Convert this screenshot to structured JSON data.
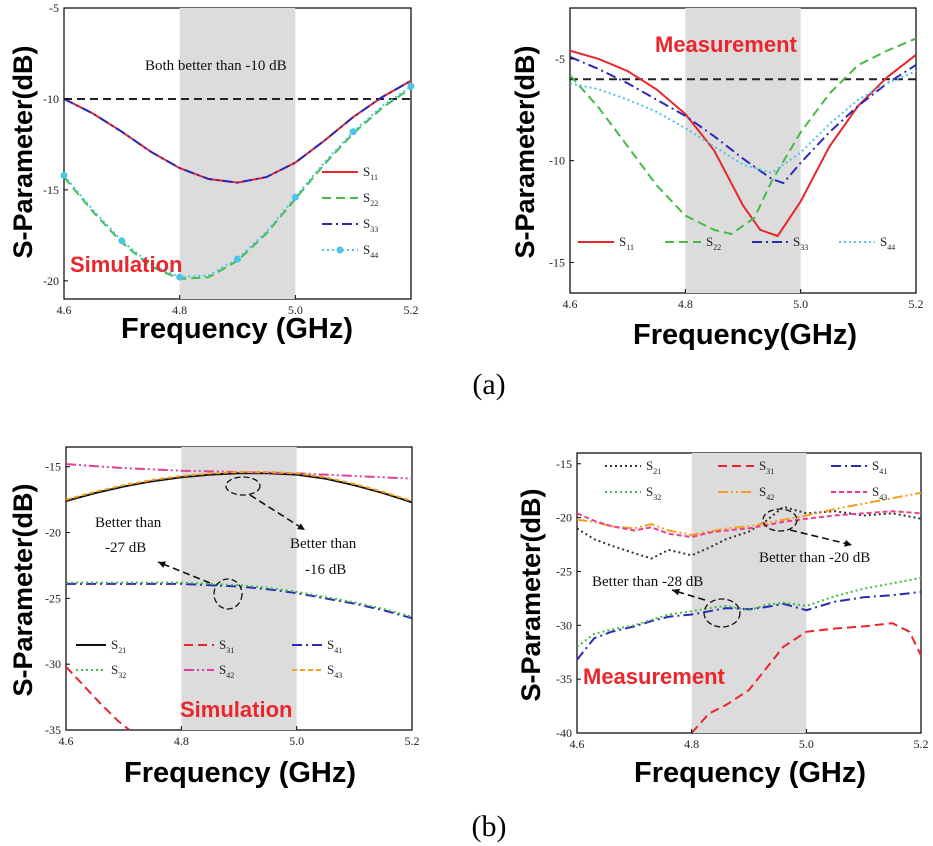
{
  "figure": {
    "panel_labels": [
      "(a)",
      "(b)"
    ],
    "xlabel": "Frequency (GHz)",
    "xlabel_alt": "Frequency(GHz)",
    "ylabel": "S-Parameter(dB)"
  },
  "chart_data": [
    {
      "id": "a-sim",
      "type": "line",
      "mode_label": "Simulation",
      "xlabel": "Frequency (GHz)",
      "ylabel": "S-Parameter(dB)",
      "xlim": [
        4.6,
        5.2
      ],
      "ylim": [
        -21,
        -5
      ],
      "xticks": [
        4.6,
        4.8,
        5.0,
        5.2
      ],
      "xtick_labels": [
        "4.6",
        "4.8",
        "5.0",
        "5.2"
      ],
      "yticks": [
        -5,
        -10,
        -15,
        -20
      ],
      "ytick_labels": [
        "-5",
        "-10",
        "-15",
        "-20"
      ],
      "band": [
        4.8,
        5.0
      ],
      "hline": -10,
      "annotations": [
        "Both better than -10 dB"
      ],
      "legend": [
        {
          "base": "S",
          "sub": "11"
        },
        {
          "base": "S",
          "sub": "22"
        },
        {
          "base": "S",
          "sub": "33"
        },
        {
          "base": "S",
          "sub": "44"
        }
      ],
      "series": [
        {
          "name": "S11",
          "color": "#e8262b",
          "style": "solid",
          "x": [
            4.6,
            4.65,
            4.7,
            4.75,
            4.8,
            4.85,
            4.9,
            4.95,
            5.0,
            5.05,
            5.1,
            5.15,
            5.2
          ],
          "y": [
            -10.0,
            -10.8,
            -11.8,
            -12.9,
            -13.8,
            -14.4,
            -14.6,
            -14.3,
            -13.5,
            -12.3,
            -11.0,
            -9.9,
            -9.0
          ]
        },
        {
          "name": "S22",
          "color": "#44bb44",
          "style": "dash",
          "x": [
            4.6,
            4.65,
            4.7,
            4.75,
            4.8,
            4.85,
            4.9,
            4.95,
            5.0,
            5.05,
            5.1,
            5.15,
            5.2
          ],
          "y": [
            -14.3,
            -16.2,
            -17.9,
            -19.2,
            -19.9,
            -19.8,
            -18.9,
            -17.4,
            -15.5,
            -13.6,
            -11.9,
            -10.5,
            -9.4
          ]
        },
        {
          "name": "S33",
          "color": "#2a2ab8",
          "style": "dashdot",
          "x": [
            4.6,
            4.65,
            4.7,
            4.75,
            4.8,
            4.85,
            4.9,
            4.95,
            5.0,
            5.05,
            5.1,
            5.15,
            5.2
          ],
          "y": [
            -10.0,
            -10.8,
            -11.8,
            -12.9,
            -13.8,
            -14.4,
            -14.6,
            -14.3,
            -13.5,
            -12.3,
            -11.0,
            -9.9,
            -9.0
          ]
        },
        {
          "name": "S44",
          "color": "#4cc4e8",
          "style": "dotmarker",
          "x": [
            4.6,
            4.65,
            4.7,
            4.75,
            4.8,
            4.85,
            4.9,
            4.95,
            5.0,
            5.05,
            5.1,
            5.15,
            5.2
          ],
          "y": [
            -14.2,
            -16.1,
            -17.8,
            -19.1,
            -19.8,
            -19.7,
            -18.8,
            -17.3,
            -15.4,
            -13.5,
            -11.8,
            -10.4,
            -9.3
          ]
        }
      ]
    },
    {
      "id": "a-meas",
      "type": "line",
      "mode_label": "Measurement",
      "xlabel": "Frequency(GHz)",
      "ylabel": "S-Parameter(dB)",
      "xlim": [
        4.6,
        5.2
      ],
      "ylim": [
        -16.5,
        -2.5
      ],
      "xticks": [
        4.6,
        4.8,
        5.0,
        5.2
      ],
      "xtick_labels": [
        "4.6",
        "4.8",
        "5.0",
        "5.2"
      ],
      "yticks": [
        -5,
        -10,
        -15
      ],
      "ytick_labels": [
        "-5",
        "-10",
        "-15"
      ],
      "band": [
        4.8,
        5.0
      ],
      "hline": -6,
      "annotations": [],
      "legend": [
        {
          "base": "S",
          "sub": "11"
        },
        {
          "base": "S",
          "sub": "22"
        },
        {
          "base": "S",
          "sub": "33"
        },
        {
          "base": "S",
          "sub": "44"
        }
      ],
      "series": [
        {
          "name": "S11",
          "color": "#e8262b",
          "style": "solid",
          "x": [
            4.6,
            4.65,
            4.7,
            4.75,
            4.8,
            4.85,
            4.9,
            4.93,
            4.96,
            5.0,
            5.05,
            5.1,
            5.15,
            5.2
          ],
          "y": [
            -4.6,
            -5.0,
            -5.6,
            -6.5,
            -7.7,
            -9.5,
            -12.2,
            -13.4,
            -13.7,
            -12.0,
            -9.3,
            -7.3,
            -5.9,
            -4.8
          ]
        },
        {
          "name": "S22",
          "color": "#44bb44",
          "style": "dash",
          "x": [
            4.6,
            4.65,
            4.7,
            4.75,
            4.8,
            4.85,
            4.88,
            4.92,
            4.95,
            5.0,
            5.05,
            5.1,
            5.15,
            5.2
          ],
          "y": [
            -5.8,
            -7.4,
            -9.3,
            -11.2,
            -12.7,
            -13.4,
            -13.6,
            -12.8,
            -11.0,
            -8.6,
            -6.7,
            -5.3,
            -4.6,
            -4.0
          ]
        },
        {
          "name": "S33",
          "color": "#2a2ab8",
          "style": "dashdot",
          "x": [
            4.6,
            4.65,
            4.7,
            4.75,
            4.8,
            4.85,
            4.9,
            4.95,
            4.97,
            5.0,
            5.05,
            5.1,
            5.15,
            5.2
          ],
          "y": [
            -4.9,
            -5.5,
            -6.2,
            -7.0,
            -7.8,
            -8.8,
            -9.9,
            -10.9,
            -11.1,
            -10.1,
            -8.6,
            -7.3,
            -6.2,
            -5.3
          ]
        },
        {
          "name": "S44",
          "color": "#4cc4e8",
          "style": "dot",
          "x": [
            4.6,
            4.65,
            4.7,
            4.75,
            4.8,
            4.85,
            4.9,
            4.95,
            5.0,
            5.05,
            5.1,
            5.15,
            5.2
          ],
          "y": [
            -6.2,
            -6.5,
            -7.0,
            -7.6,
            -8.4,
            -9.3,
            -10.2,
            -10.6,
            -9.6,
            -8.2,
            -7.0,
            -6.2,
            -5.6
          ]
        }
      ]
    },
    {
      "id": "b-sim",
      "type": "line",
      "mode_label": "Simulation",
      "xlabel": "Frequency (GHz)",
      "ylabel": "S-Parameter(dB)",
      "xlim": [
        4.6,
        5.2
      ],
      "ylim": [
        -35,
        -13.5
      ],
      "xticks": [
        4.6,
        4.8,
        5.0,
        5.2
      ],
      "xtick_labels": [
        "4.6",
        "4.8",
        "5.0",
        "5.2"
      ],
      "yticks": [
        -15,
        -20,
        -25,
        -30,
        -35
      ],
      "ytick_labels": [
        "-15",
        "-20",
        "-25",
        "-30",
        "-35"
      ],
      "band": [
        4.8,
        5.0
      ],
      "annotations": [
        "Better than",
        "-27 dB",
        "Better than",
        "-16 dB"
      ],
      "legend": [
        {
          "base": "S",
          "sub": "21"
        },
        {
          "base": "S",
          "sub": "31"
        },
        {
          "base": "S",
          "sub": "41"
        },
        {
          "base": "S",
          "sub": "32"
        },
        {
          "base": "S",
          "sub": "42"
        },
        {
          "base": "S",
          "sub": "43"
        }
      ],
      "series": [
        {
          "name": "S21",
          "color": "#111111",
          "style": "solid",
          "x": [
            4.6,
            4.65,
            4.7,
            4.75,
            4.8,
            4.85,
            4.9,
            4.95,
            5.0,
            5.05,
            5.1,
            5.15,
            5.2
          ],
          "y": [
            -17.6,
            -17.0,
            -16.5,
            -16.1,
            -15.8,
            -15.6,
            -15.5,
            -15.5,
            -15.6,
            -15.9,
            -16.4,
            -17.0,
            -17.7
          ]
        },
        {
          "name": "S31",
          "color": "#e8262b",
          "style": "dash",
          "x": [
            4.6,
            4.63,
            4.66,
            4.69,
            4.71
          ],
          "y": [
            -30.2,
            -31.6,
            -33.0,
            -34.3,
            -35.0
          ]
        },
        {
          "name": "S41",
          "color": "#2a2ab8",
          "style": "dashdot",
          "x": [
            4.6,
            4.65,
            4.7,
            4.75,
            4.8,
            4.85,
            4.9,
            4.95,
            5.0,
            5.05,
            5.1,
            5.15,
            5.2
          ],
          "y": [
            -23.9,
            -23.9,
            -23.9,
            -23.9,
            -23.9,
            -24.0,
            -24.1,
            -24.3,
            -24.6,
            -25.0,
            -25.4,
            -25.9,
            -26.5
          ]
        },
        {
          "name": "S32",
          "color": "#44bb44",
          "style": "dot",
          "x": [
            4.6,
            4.65,
            4.7,
            4.75,
            4.8,
            4.85,
            4.9,
            4.95,
            5.0,
            5.05,
            5.1,
            5.15,
            5.2
          ],
          "y": [
            -23.8,
            -23.8,
            -23.8,
            -23.8,
            -23.8,
            -23.9,
            -24.0,
            -24.2,
            -24.5,
            -24.9,
            -25.3,
            -25.8,
            -26.4
          ]
        },
        {
          "name": "S42",
          "color": "#e0409a",
          "style": "dashdotdot",
          "x": [
            4.6,
            4.7,
            4.8,
            4.9,
            5.0,
            5.1,
            5.2
          ],
          "y": [
            -14.8,
            -15.1,
            -15.3,
            -15.4,
            -15.5,
            -15.7,
            -15.9
          ]
        },
        {
          "name": "S43",
          "color": "#f5a020",
          "style": "shortdash",
          "x": [
            4.6,
            4.65,
            4.7,
            4.75,
            4.8,
            4.85,
            4.9,
            4.95,
            5.0,
            5.05,
            5.1,
            5.15,
            5.2
          ],
          "y": [
            -17.5,
            -16.9,
            -16.4,
            -16.0,
            -15.7,
            -15.5,
            -15.4,
            -15.4,
            -15.5,
            -15.8,
            -16.3,
            -16.9,
            -17.6
          ]
        }
      ]
    },
    {
      "id": "b-meas",
      "type": "line",
      "mode_label": "Measurement",
      "xlabel": "Frequency (GHz)",
      "ylabel": "S-Parameter(dB)",
      "xlim": [
        4.6,
        5.2
      ],
      "ylim": [
        -40,
        -14
      ],
      "xticks": [
        4.6,
        4.8,
        5.0,
        5.2
      ],
      "xtick_labels": [
        "4.6",
        "4.8",
        "5.0",
        "5.2"
      ],
      "yticks": [
        -15,
        -20,
        -25,
        -30,
        -35,
        -40
      ],
      "ytick_labels": [
        "-15",
        "-20",
        "-25",
        "-30",
        "-35",
        "-40"
      ],
      "band": [
        4.8,
        5.0
      ],
      "annotations": [
        "Better than -28 dB",
        "Better than -20 dB"
      ],
      "legend": [
        {
          "base": "S",
          "sub": "21"
        },
        {
          "base": "S",
          "sub": "31"
        },
        {
          "base": "S",
          "sub": "41"
        },
        {
          "base": "S",
          "sub": "32"
        },
        {
          "base": "S",
          "sub": "42"
        },
        {
          "base": "S",
          "sub": "43"
        }
      ],
      "series": [
        {
          "name": "S21",
          "color": "#333333",
          "style": "dot",
          "x": [
            4.6,
            4.63,
            4.66,
            4.7,
            4.73,
            4.76,
            4.8,
            4.83,
            4.86,
            4.9,
            4.93,
            4.96,
            5.0,
            5.05,
            5.1,
            5.15,
            5.2
          ],
          "y": [
            -21.0,
            -22.0,
            -22.6,
            -23.3,
            -23.8,
            -23.0,
            -23.5,
            -22.8,
            -22.0,
            -21.3,
            -20.3,
            -19.0,
            -19.6,
            -19.4,
            -19.8,
            -19.6,
            -20.1
          ]
        },
        {
          "name": "S31",
          "color": "#e8262b",
          "style": "dash",
          "x": [
            4.8,
            4.83,
            4.86,
            4.9,
            4.93,
            4.96,
            5.0,
            5.05,
            5.1,
            5.15,
            5.18,
            5.2
          ],
          "y": [
            -40.0,
            -38.2,
            -37.4,
            -36.0,
            -34.0,
            -32.0,
            -30.6,
            -30.3,
            -30.1,
            -29.8,
            -30.6,
            -32.8
          ]
        },
        {
          "name": "S41",
          "color": "#2a2ab8",
          "style": "dashdot",
          "x": [
            4.6,
            4.63,
            4.66,
            4.7,
            4.73,
            4.76,
            4.8,
            4.83,
            4.86,
            4.9,
            4.93,
            4.96,
            5.0,
            5.05,
            5.1,
            5.15,
            5.2
          ],
          "y": [
            -33.2,
            -31.2,
            -30.6,
            -30.1,
            -29.6,
            -29.2,
            -29.0,
            -28.7,
            -28.4,
            -28.5,
            -28.3,
            -28.0,
            -28.6,
            -27.8,
            -27.4,
            -27.2,
            -26.9
          ]
        },
        {
          "name": "S32",
          "color": "#44bb44",
          "style": "dot",
          "x": [
            4.6,
            4.63,
            4.66,
            4.7,
            4.73,
            4.76,
            4.8,
            4.83,
            4.86,
            4.9,
            4.93,
            4.96,
            5.0,
            5.05,
            5.1,
            5.15,
            5.2
          ],
          "y": [
            -32.0,
            -30.8,
            -30.4,
            -30.0,
            -29.5,
            -29.0,
            -28.7,
            -28.4,
            -28.2,
            -28.6,
            -28.1,
            -27.9,
            -28.2,
            -27.3,
            -26.6,
            -26.1,
            -25.6
          ]
        },
        {
          "name": "S42",
          "color": "#f5a020",
          "style": "dashdotdot",
          "x": [
            4.6,
            4.63,
            4.66,
            4.7,
            4.73,
            4.76,
            4.8,
            4.83,
            4.86,
            4.9,
            4.93,
            4.96,
            5.0,
            5.05,
            5.1,
            5.15,
            5.2
          ],
          "y": [
            -20.2,
            -20.4,
            -20.8,
            -21.0,
            -20.6,
            -21.2,
            -21.6,
            -21.3,
            -21.0,
            -20.8,
            -20.5,
            -20.2,
            -19.8,
            -19.2,
            -18.7,
            -18.2,
            -17.7
          ]
        },
        {
          "name": "S43",
          "color": "#ee3d8a",
          "style": "shortdash",
          "x": [
            4.6,
            4.63,
            4.66,
            4.7,
            4.73,
            4.76,
            4.8,
            4.83,
            4.86,
            4.9,
            4.93,
            4.96,
            5.0,
            5.05,
            5.1,
            5.15,
            5.2
          ],
          "y": [
            -19.6,
            -20.3,
            -20.8,
            -21.2,
            -20.9,
            -21.5,
            -21.8,
            -21.4,
            -21.2,
            -21.0,
            -20.7,
            -20.4,
            -20.1,
            -19.8,
            -19.6,
            -19.4,
            -19.6
          ]
        }
      ]
    }
  ]
}
